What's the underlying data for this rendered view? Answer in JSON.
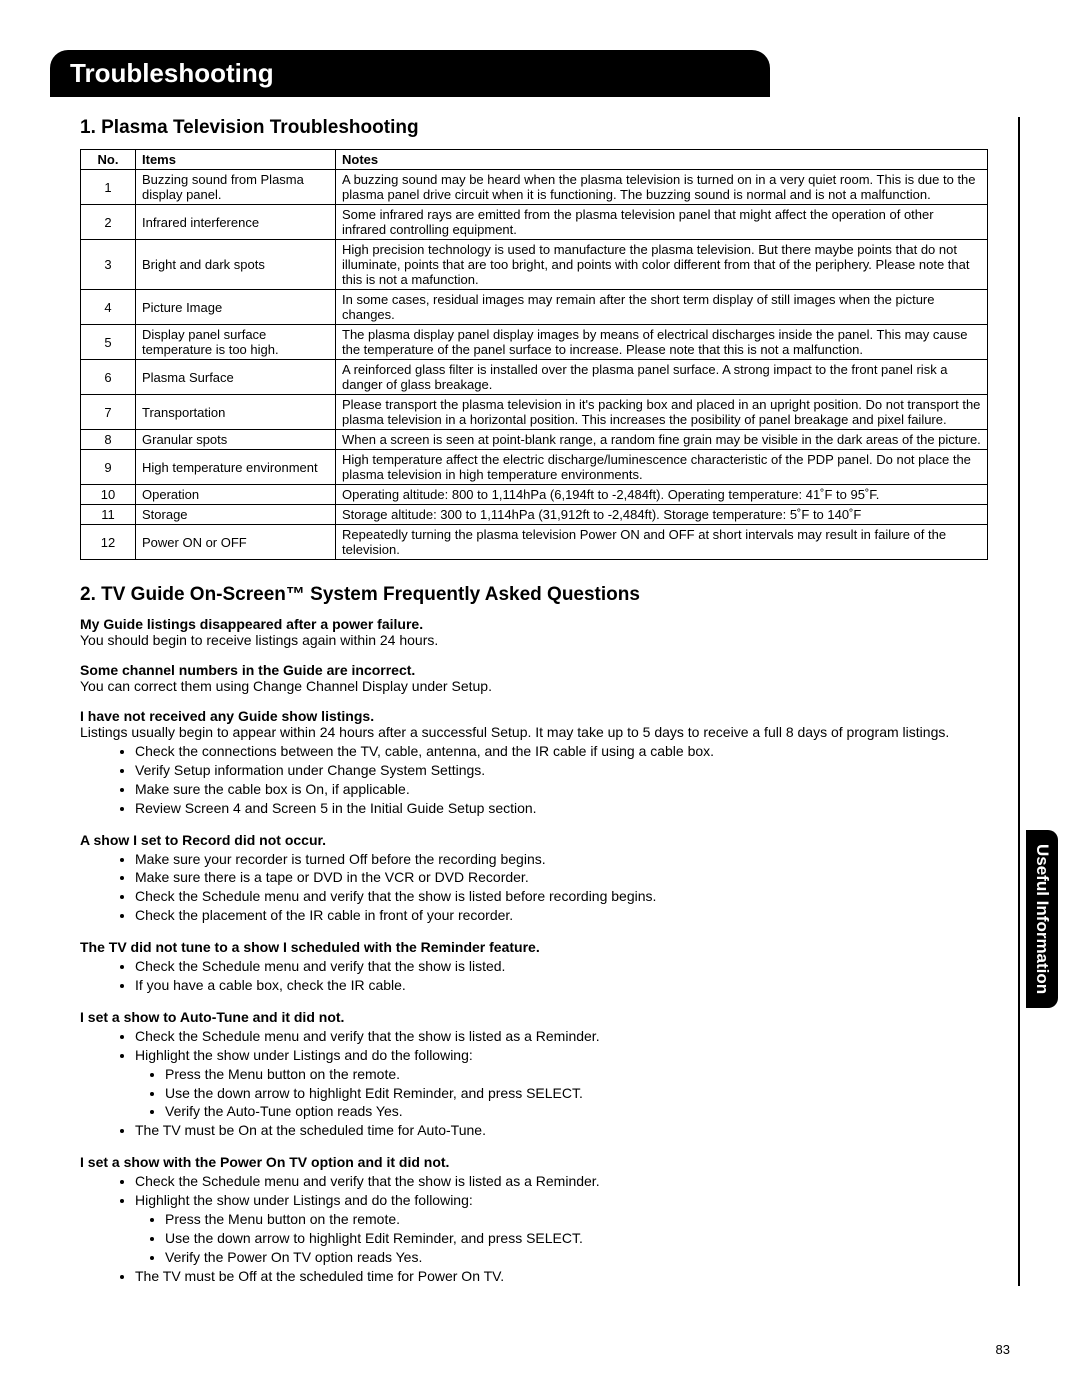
{
  "banner": "Troubleshooting",
  "section1_title": "1.  Plasma Television Troubleshooting",
  "table_headers": {
    "no": "No.",
    "items": "Items",
    "notes": "Notes"
  },
  "table_rows": [
    {
      "no": "1",
      "item": "Buzzing sound from Plasma display panel.",
      "note": "A buzzing sound may be heard when the plasma television is turned on in a very quiet room. This is due to the plasma panel drive circuit when it is functioning. The buzzing sound is normal and is not a malfunction."
    },
    {
      "no": "2",
      "item": "Infrared interference",
      "note": "Some infrared rays are emitted from the plasma television panel that might affect the operation of other infrared controlling equipment."
    },
    {
      "no": "3",
      "item": "Bright and dark spots",
      "note": "High precision technology is used to manufacture the plasma television. But there maybe points that do not illuminate, points that are too bright, and points with color different from that of the periphery. Please note that this is not a mafunction."
    },
    {
      "no": "4",
      "item": "Picture Image",
      "note": "In some cases, residual images may remain after the short term display of still images when the picture changes."
    },
    {
      "no": "5",
      "item": "Display panel surface temperature is too high.",
      "note": "The plasma display panel display images by means of electrical discharges inside the panel. This may cause the temperature of the panel surface to increase. Please note that this is not a malfunction."
    },
    {
      "no": "6",
      "item": "Plasma Surface",
      "note": "A reinforced  glass filter is installed over the plasma panel surface. A strong impact to the front panel risk a danger of glass breakage."
    },
    {
      "no": "7",
      "item": "Transportation",
      "note": "Please transport the plasma television in it's packing box and placed in an upright position. Do not transport the plasma television in a horizontal position. This increases the posibility of panel breakage and pixel failure."
    },
    {
      "no": "8",
      "item": "Granular spots",
      "note": "When a screen is seen at point-blank range, a random fine grain may be visible in the dark areas of the picture."
    },
    {
      "no": "9",
      "item": "High temperature environment",
      "note": "High temperature affect the electric discharge/luminescence characteristic of the PDP panel. Do not place the plasma television in high temperature environments."
    },
    {
      "no": "10",
      "item": "Operation",
      "note": "Operating altitude:  800 to 1,114hPa (6,194ft to -2,484ft).  Operating temperature:  41˚F to 95˚F."
    },
    {
      "no": "11",
      "item": "Storage",
      "note": "Storage altitude:  300 to 1,114hPa (31,912ft to -2,484ft).  Storage temperature:  5˚F to 140˚F"
    },
    {
      "no": "12",
      "item": "Power ON or OFF",
      "note": "Repeatedly turning the plasma television Power ON and OFF at short intervals may result in failure of the television."
    }
  ],
  "section2_title": "2.  TV Guide On-Screen™ System Frequently Asked Questions",
  "faq1_q": "My Guide listings disappeared after a power failure.",
  "faq1_a": "You should begin to receive listings again within 24 hours.",
  "faq2_q": "Some channel numbers in the Guide are incorrect.",
  "faq2_a": "You can correct them using Change Channel Display under Setup.",
  "faq3_q": "I have not received any Guide show listings.",
  "faq3_a": "Listings usually begin to appear within 24 hours after a successful Setup.  It may take up to 5 days to receive a full 8 days of program listings.",
  "faq3_bullets": [
    "Check the connections between the TV, cable, antenna, and the IR cable if using a cable box.",
    "Verify Setup information under Change System Settings.",
    "Make sure the cable box is On, if applicable.",
    "Review Screen 4 and Screen 5 in the Initial Guide Setup section."
  ],
  "faq4_q": "A show I set to Record did not occur.",
  "faq4_bullets": [
    "Make sure your recorder is turned Off before the recording begins.",
    "Make sure there is a tape or DVD in the VCR or DVD Recorder.",
    "Check the Schedule menu and verify that the show is listed before recording begins.",
    "Check the placement of the IR cable in front of your recorder."
  ],
  "faq5_q": "The TV did not tune to a show I scheduled with the Reminder feature.",
  "faq5_bullets": [
    "Check the Schedule menu and verify that the show is listed.",
    "If you have a cable box, check the IR cable."
  ],
  "faq6_q": "I set a show to Auto-Tune and it did not.",
  "faq6_b1": "Check the Schedule menu and verify that the show is listed as a Reminder.",
  "faq6_b2": "Highlight the show under Listings and do the following:",
  "faq6_sub": [
    "Press the Menu button on the remote.",
    "Use the down arrow to highlight Edit Reminder, and press SELECT.",
    "Verify the Auto-Tune option reads Yes."
  ],
  "faq6_b3": "The TV must be On at the scheduled time for Auto-Tune.",
  "faq7_q": "I set a show with the Power On TV option and it did not.",
  "faq7_b1": "Check the Schedule menu and verify that the show is listed as a Reminder.",
  "faq7_b2": "Highlight the show under Listings and do the following:",
  "faq7_sub": [
    "Press the Menu button on the remote.",
    "Use the down arrow to highlight Edit Reminder, and press SELECT.",
    "Verify the Power On TV option reads Yes."
  ],
  "faq7_b3": "The TV must be Off at the scheduled time for Power On TV.",
  "side_tab": "Useful Information",
  "page_number": "83"
}
